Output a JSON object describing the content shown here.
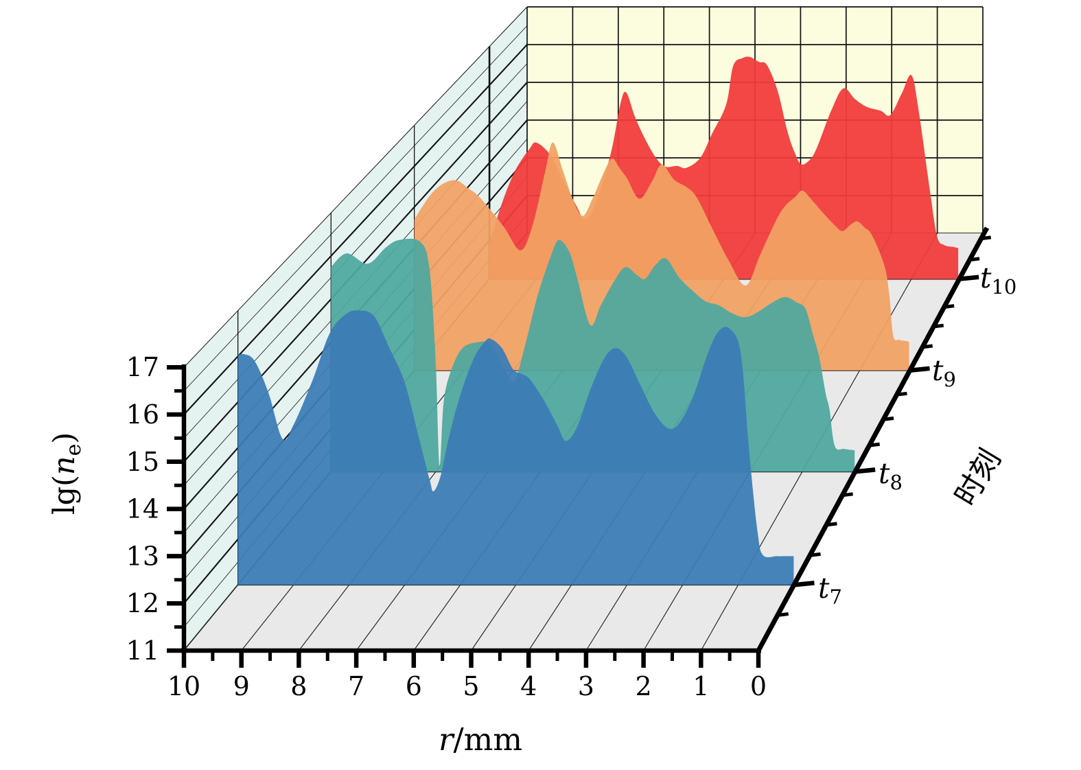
{
  "chart_data": {
    "type": "area",
    "variant": "3d-perspective-ridgeline",
    "title": "",
    "xlabel_var": "r",
    "xlabel_rest": "/mm",
    "ylabel_pre": "lg(",
    "ylabel_var": "n",
    "ylabel_sub": "e",
    "ylabel_post": ")",
    "zlabel": "时刻",
    "x_tick_labels": [
      "10",
      "9",
      "8",
      "7",
      "6",
      "5",
      "4",
      "3",
      "2",
      "1",
      "0"
    ],
    "x_range": [
      10,
      0
    ],
    "y_tick_labels": [
      "11",
      "12",
      "13",
      "14",
      "15",
      "16",
      "17"
    ],
    "y_range": [
      11,
      17
    ],
    "z_ticks": [
      {
        "base": "t",
        "sub": "7"
      },
      {
        "base": "t",
        "sub": "8"
      },
      {
        "base": "t",
        "sub": "9"
      },
      {
        "base": "t",
        "sub": "10"
      }
    ],
    "grid": "on",
    "legend": "none",
    "series": [
      {
        "name": "t7",
        "color": "#3C7CB6",
        "points": [
          [
            10,
            16.02
          ],
          [
            9.9,
            16.05
          ],
          [
            9.7,
            15.9
          ],
          [
            9.45,
            15.2
          ],
          [
            9.2,
            14.2
          ],
          [
            9.0,
            14.5
          ],
          [
            8.65,
            15.5
          ],
          [
            8.35,
            16.5
          ],
          [
            8.05,
            16.93
          ],
          [
            7.8,
            17.0
          ],
          [
            7.55,
            16.88
          ],
          [
            7.3,
            16.25
          ],
          [
            7.0,
            15.43
          ],
          [
            6.75,
            14.25
          ],
          [
            6.55,
            13.3
          ],
          [
            6.48,
            13.05
          ],
          [
            6.35,
            13.4
          ],
          [
            6.2,
            14.25
          ],
          [
            6.0,
            15.15
          ],
          [
            5.75,
            15.97
          ],
          [
            5.55,
            16.33
          ],
          [
            5.45,
            16.38
          ],
          [
            5.25,
            16.18
          ],
          [
            5.05,
            15.72
          ],
          [
            4.9,
            15.62
          ],
          [
            4.75,
            15.5
          ],
          [
            4.5,
            15.05
          ],
          [
            4.25,
            14.48
          ],
          [
            4.1,
            14.15
          ],
          [
            3.9,
            14.45
          ],
          [
            3.65,
            15.3
          ],
          [
            3.4,
            15.97
          ],
          [
            3.2,
            16.18
          ],
          [
            3.0,
            15.97
          ],
          [
            2.75,
            15.35
          ],
          [
            2.5,
            14.75
          ],
          [
            2.25,
            14.42
          ],
          [
            2.05,
            14.55
          ],
          [
            1.8,
            15.15
          ],
          [
            1.55,
            16.05
          ],
          [
            1.35,
            16.55
          ],
          [
            1.15,
            16.6
          ],
          [
            0.95,
            16.05
          ],
          [
            0.8,
            13.9
          ],
          [
            0.65,
            12.15
          ],
          [
            0.55,
            11.65
          ],
          [
            0.3,
            11.63
          ],
          [
            0.12,
            11.63
          ],
          [
            0,
            11.63
          ]
        ]
      },
      {
        "name": "t8",
        "color": "#4FA89E",
        "points": [
          [
            10,
            15.75
          ],
          [
            9.7,
            16.06
          ],
          [
            9.3,
            15.82
          ],
          [
            8.95,
            16.2
          ],
          [
            8.7,
            16.37
          ],
          [
            8.3,
            16.33
          ],
          [
            8.12,
            15.7
          ],
          [
            8.0,
            13.5
          ],
          [
            7.93,
            11.15
          ],
          [
            7.85,
            12.6
          ],
          [
            7.72,
            13.3
          ],
          [
            7.5,
            13.85
          ],
          [
            7.2,
            14.0
          ],
          [
            6.95,
            13.95
          ],
          [
            6.7,
            13.4
          ],
          [
            6.5,
            13.1
          ],
          [
            6.3,
            13.9
          ],
          [
            6.05,
            15.1
          ],
          [
            5.8,
            16.0
          ],
          [
            5.65,
            16.37
          ],
          [
            5.45,
            16.1
          ],
          [
            5.3,
            15.5
          ],
          [
            5.05,
            14.4
          ],
          [
            4.85,
            14.85
          ],
          [
            4.6,
            15.4
          ],
          [
            4.38,
            15.74
          ],
          [
            4.15,
            15.55
          ],
          [
            4.0,
            15.47
          ],
          [
            3.8,
            15.8
          ],
          [
            3.6,
            15.94
          ],
          [
            3.35,
            15.5
          ],
          [
            3.1,
            15.2
          ],
          [
            2.85,
            14.95
          ],
          [
            2.6,
            14.86
          ],
          [
            2.35,
            14.68
          ],
          [
            2.1,
            14.58
          ],
          [
            1.85,
            14.7
          ],
          [
            1.6,
            14.9
          ],
          [
            1.33,
            15.05
          ],
          [
            1.1,
            14.92
          ],
          [
            0.94,
            14.78
          ],
          [
            0.8,
            14.2
          ],
          [
            0.68,
            13.67
          ],
          [
            0.55,
            12.8
          ],
          [
            0.48,
            12.45
          ],
          [
            0.38,
            11.6
          ],
          [
            0.2,
            11.53
          ],
          [
            0,
            11.5
          ]
        ]
      },
      {
        "name": "t9",
        "color": "#F1A164",
        "points": [
          [
            10,
            14.7
          ],
          [
            9.6,
            15.4
          ],
          [
            9.2,
            15.66
          ],
          [
            8.9,
            15.45
          ],
          [
            8.65,
            15.2
          ],
          [
            8.2,
            14.53
          ],
          [
            7.85,
            13.94
          ],
          [
            7.6,
            14.6
          ],
          [
            7.35,
            15.9
          ],
          [
            7.2,
            16.58
          ],
          [
            7.0,
            15.9
          ],
          [
            6.8,
            15.2
          ],
          [
            6.6,
            14.78
          ],
          [
            6.4,
            15.2
          ],
          [
            6.15,
            15.9
          ],
          [
            6.0,
            16.19
          ],
          [
            5.85,
            15.95
          ],
          [
            5.7,
            15.7
          ],
          [
            5.45,
            15.2
          ],
          [
            5.2,
            15.62
          ],
          [
            5.0,
            16.04
          ],
          [
            4.75,
            15.67
          ],
          [
            4.5,
            15.49
          ],
          [
            4.3,
            15.25
          ],
          [
            4.0,
            14.53
          ],
          [
            3.65,
            13.7
          ],
          [
            3.3,
            13.08
          ],
          [
            3.0,
            13.86
          ],
          [
            2.6,
            14.87
          ],
          [
            2.3,
            15.25
          ],
          [
            2.15,
            15.4
          ],
          [
            1.95,
            15.15
          ],
          [
            1.75,
            14.87
          ],
          [
            1.5,
            14.55
          ],
          [
            1.35,
            14.41
          ],
          [
            1.2,
            14.55
          ],
          [
            1.05,
            14.65
          ],
          [
            0.9,
            14.5
          ],
          [
            0.75,
            14.31
          ],
          [
            0.5,
            13.57
          ],
          [
            0.4,
            12.85
          ],
          [
            0.32,
            11.85
          ],
          [
            0.2,
            11.75
          ],
          [
            0.05,
            11.72
          ],
          [
            0,
            11.7
          ]
        ]
      },
      {
        "name": "t10",
        "color": "#F13C3C",
        "points": [
          [
            10,
            11.9
          ],
          [
            9.75,
            12.9
          ],
          [
            9.45,
            13.8
          ],
          [
            9.15,
            14.35
          ],
          [
            9.0,
            14.52
          ],
          [
            8.7,
            14.2
          ],
          [
            8.45,
            13.6
          ],
          [
            8.15,
            12.9
          ],
          [
            7.95,
            12.54
          ],
          [
            7.7,
            13.07
          ],
          [
            7.4,
            14.3
          ],
          [
            7.2,
            15.55
          ],
          [
            7.08,
            15.81
          ],
          [
            6.9,
            15.2
          ],
          [
            6.7,
            14.66
          ],
          [
            6.45,
            14.13
          ],
          [
            6.25,
            13.9
          ],
          [
            6.0,
            13.92
          ],
          [
            5.8,
            13.87
          ],
          [
            5.5,
            14.13
          ],
          [
            5.25,
            14.75
          ],
          [
            4.95,
            15.5
          ],
          [
            4.8,
            16.5
          ],
          [
            4.6,
            16.7
          ],
          [
            4.45,
            16.73
          ],
          [
            4.25,
            16.6
          ],
          [
            4.08,
            16.52
          ],
          [
            3.85,
            15.85
          ],
          [
            3.65,
            14.84
          ],
          [
            3.5,
            14.3
          ],
          [
            3.35,
            13.96
          ],
          [
            3.15,
            14.1
          ],
          [
            3.0,
            14.43
          ],
          [
            2.7,
            15.37
          ],
          [
            2.45,
            15.92
          ],
          [
            2.2,
            15.64
          ],
          [
            1.95,
            15.44
          ],
          [
            1.65,
            15.34
          ],
          [
            1.45,
            15.23
          ],
          [
            1.2,
            15.8
          ],
          [
            1.0,
            16.26
          ],
          [
            0.85,
            15.4
          ],
          [
            0.6,
            13.25
          ],
          [
            0.45,
            12.1
          ],
          [
            0.3,
            11.88
          ],
          [
            0.1,
            11.83
          ],
          [
            0,
            11.8
          ]
        ]
      }
    ],
    "colors": {
      "wall_left": "#E4F2F0",
      "wall_back": "#FCFCDF",
      "floor": "#E9E9E9",
      "axis": "#000000",
      "grid_line": "#111111"
    }
  }
}
